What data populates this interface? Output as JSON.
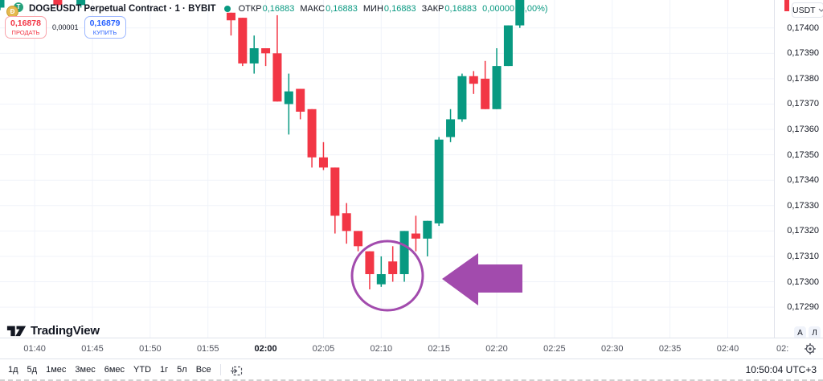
{
  "header": {
    "symbol_title": "DOGEUSDT Perpetual Contract · 1 · BYBIT",
    "ohlc": {
      "open_label": "ОТКР",
      "open": "0,16883",
      "high_label": "МАКС",
      "high": "0,16883",
      "low_label": "МИН",
      "low": "0,16883",
      "close_label": "ЗАКР",
      "close": "0,16883",
      "change": "0,00000 (0,00%)"
    },
    "sell": {
      "price": "0,16878",
      "label": "ПРОДАТЬ"
    },
    "spread": "0,00001",
    "buy": {
      "price": "0,16879",
      "label": "КУПИТЬ"
    }
  },
  "icons": {
    "doge_glyph": "Ð",
    "usdt_glyph": "T"
  },
  "price_axis": {
    "currency": "USDT",
    "auto_label": "А",
    "log_label": "Л",
    "labels": [
      {
        "text": "0,17400",
        "value": 0.174
      },
      {
        "text": "0,17390",
        "value": 0.1739
      },
      {
        "text": "0,17380",
        "value": 0.1738
      },
      {
        "text": "0,17370",
        "value": 0.1737
      },
      {
        "text": "0,17360",
        "value": 0.1736
      },
      {
        "text": "0,17350",
        "value": 0.1735
      },
      {
        "text": "0,17340",
        "value": 0.1734
      },
      {
        "text": "0,17330",
        "value": 0.1733
      },
      {
        "text": "0,17320",
        "value": 0.1732
      },
      {
        "text": "0,17310",
        "value": 0.1731
      },
      {
        "text": "0,17300",
        "value": 0.173
      },
      {
        "text": "0,17290",
        "value": 0.1729
      }
    ]
  },
  "time_axis": {
    "labels": [
      {
        "t": "01:40"
      },
      {
        "t": "01:45"
      },
      {
        "t": "01:50"
      },
      {
        "t": "01:55"
      },
      {
        "t": "02:00",
        "bold": true
      },
      {
        "t": "02:05"
      },
      {
        "t": "02:10"
      },
      {
        "t": "02:15"
      },
      {
        "t": "02:20"
      },
      {
        "t": "02:25"
      },
      {
        "t": "02:30"
      },
      {
        "t": "02:35"
      },
      {
        "t": "02:40"
      }
    ],
    "partial_label": "02:"
  },
  "footer": {
    "ranges": [
      "1д",
      "5д",
      "1мес",
      "3мес",
      "6мес",
      "YTD",
      "1г",
      "5л",
      "Все"
    ],
    "clock": "10:50:04 UTC+3"
  },
  "logo": {
    "text": "TradingView"
  },
  "colors": {
    "up": "#089981",
    "down": "#f23645",
    "grid": "#f0f3fa",
    "annotation": "#a24bad",
    "sell": "#f23645",
    "buy": "#2962ff"
  },
  "chart_data": {
    "type": "candlestick",
    "symbol": "DOGEUSDT Perpetual Contract",
    "exchange": "BYBIT",
    "interval": "1",
    "ylim": [
      0.17278,
      0.17411
    ],
    "xlim": [
      "01:37",
      "02:44"
    ],
    "grid": true,
    "candles": [
      {
        "t": "01:37",
        "o": 0.17408,
        "h": 0.17419,
        "l": 0.17407,
        "c": 0.17418
      },
      {
        "t": "01:42",
        "o": 0.17418,
        "h": 0.17419,
        "l": 0.17408,
        "c": 0.17409
      },
      {
        "t": "01:44",
        "o": 0.17409,
        "h": 0.17419,
        "l": 0.17408,
        "c": 0.17418
      },
      {
        "t": "01:57",
        "o": 0.17406,
        "h": 0.17406,
        "l": 0.17397,
        "c": 0.17403
      },
      {
        "t": "01:58",
        "o": 0.17404,
        "h": 0.17404,
        "l": 0.17385,
        "c": 0.17386
      },
      {
        "t": "01:59",
        "o": 0.17386,
        "h": 0.17397,
        "l": 0.17382,
        "c": 0.17392
      },
      {
        "t": "02:00",
        "o": 0.17392,
        "h": 0.17392,
        "l": 0.17385,
        "c": 0.1739
      },
      {
        "t": "02:01",
        "o": 0.1739,
        "h": 0.17405,
        "l": 0.17371,
        "c": 0.17371
      },
      {
        "t": "02:02",
        "o": 0.1737,
        "h": 0.17382,
        "l": 0.17358,
        "c": 0.17375
      },
      {
        "t": "02:03",
        "o": 0.17376,
        "h": 0.17376,
        "l": 0.17364,
        "c": 0.17367
      },
      {
        "t": "02:04",
        "o": 0.17368,
        "h": 0.17368,
        "l": 0.17345,
        "c": 0.17349
      },
      {
        "t": "02:05",
        "o": 0.17349,
        "h": 0.17355,
        "l": 0.17344,
        "c": 0.17345
      },
      {
        "t": "02:06",
        "o": 0.17345,
        "h": 0.17345,
        "l": 0.17319,
        "c": 0.17326
      },
      {
        "t": "02:07",
        "o": 0.17327,
        "h": 0.17331,
        "l": 0.17315,
        "c": 0.1732
      },
      {
        "t": "02:08",
        "o": 0.1732,
        "h": 0.1732,
        "l": 0.17312,
        "c": 0.17314
      },
      {
        "t": "02:09",
        "o": 0.17312,
        "h": 0.17312,
        "l": 0.17297,
        "c": 0.17303
      },
      {
        "t": "02:10",
        "o": 0.17299,
        "h": 0.1731,
        "l": 0.17298,
        "c": 0.17303
      },
      {
        "t": "02:11",
        "o": 0.17308,
        "h": 0.17314,
        "l": 0.173,
        "c": 0.17303
      },
      {
        "t": "02:12",
        "o": 0.17303,
        "h": 0.1732,
        "l": 0.173,
        "c": 0.1732
      },
      {
        "t": "02:13",
        "o": 0.17319,
        "h": 0.17326,
        "l": 0.17312,
        "c": 0.17317
      },
      {
        "t": "02:14",
        "o": 0.17317,
        "h": 0.17324,
        "l": 0.1731,
        "c": 0.17324
      },
      {
        "t": "02:15",
        "o": 0.17323,
        "h": 0.17357,
        "l": 0.17322,
        "c": 0.17356
      },
      {
        "t": "02:16",
        "o": 0.17357,
        "h": 0.17368,
        "l": 0.17355,
        "c": 0.17364
      },
      {
        "t": "02:17",
        "o": 0.17364,
        "h": 0.17382,
        "l": 0.17363,
        "c": 0.17381
      },
      {
        "t": "02:18",
        "o": 0.17381,
        "h": 0.17383,
        "l": 0.17374,
        "c": 0.17378
      },
      {
        "t": "02:19",
        "o": 0.1738,
        "h": 0.17387,
        "l": 0.17368,
        "c": 0.17368
      },
      {
        "t": "02:20",
        "o": 0.17368,
        "h": 0.17392,
        "l": 0.17368,
        "c": 0.17385
      },
      {
        "t": "02:21",
        "o": 0.17385,
        "h": 0.17401,
        "l": 0.17385,
        "c": 0.17401
      },
      {
        "t": "02:22",
        "o": 0.17401,
        "h": 0.17414,
        "l": 0.174,
        "c": 0.17413
      }
    ],
    "annotations": [
      {
        "type": "ellipse",
        "cx": 482,
        "cy": 343,
        "rx": 44,
        "ry": 43,
        "color": "#a24bad",
        "stroke_width": 3
      },
      {
        "type": "arrow_left",
        "color": "#a24bad",
        "points": [
          [
            550,
            347
          ],
          [
            595,
            315
          ],
          [
            595,
            329
          ],
          [
            650,
            329
          ],
          [
            650,
            364
          ],
          [
            595,
            364
          ],
          [
            595,
            380
          ]
        ]
      }
    ]
  }
}
